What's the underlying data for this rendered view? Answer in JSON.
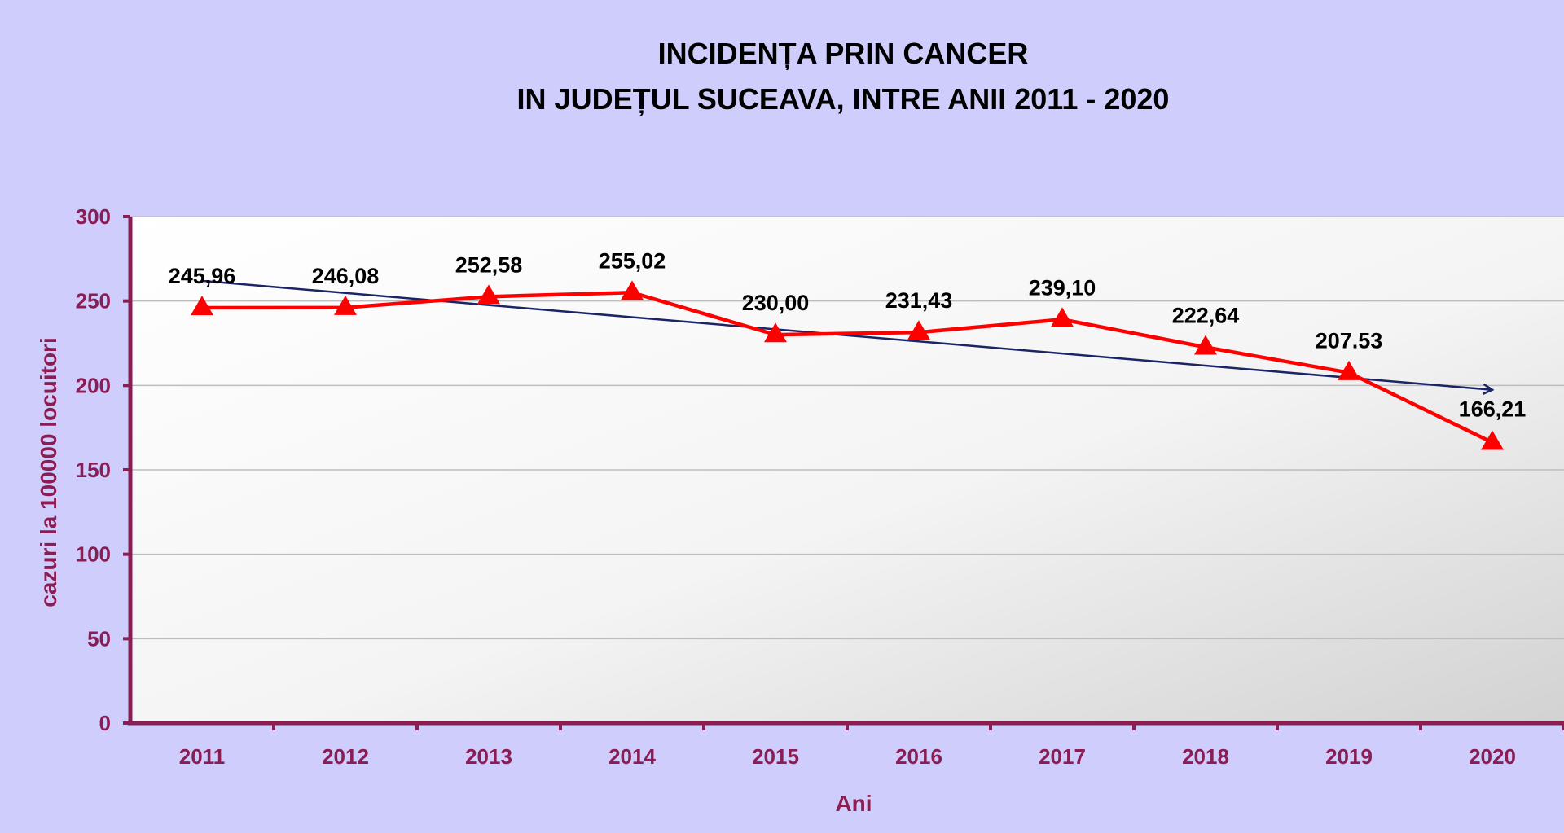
{
  "chart_data": {
    "type": "line",
    "title_lines": [
      "INCIDENȚA PRIN CANCER",
      "IN  JUDEȚUL  SUCEAVA,  INTRE ANII  2011 - 2020"
    ],
    "xlabel": "Ani",
    "ylabel": "cazuri la   100000  locuitori",
    "categories": [
      "2011",
      "2012",
      "2013",
      "2014",
      "2015",
      "2016",
      "2017",
      "2018",
      "2019",
      "2020"
    ],
    "series": [
      {
        "values": [
          245.96,
          246.08,
          252.58,
          255.02,
          230.0,
          231.43,
          239.1,
          222.64,
          207.53,
          166.21
        ],
        "labels": [
          "245,96",
          "246,08",
          "252,58",
          "255,02",
          "230,00",
          "231,43",
          "239,10",
          "222,64",
          "207.53",
          "166,21"
        ],
        "color": "#ff0000",
        "marker": "triangle"
      }
    ],
    "trendline": {
      "type": "linear",
      "color": "#1a2466",
      "arrow_end": true
    },
    "yticks": [
      "0",
      "50",
      "100",
      "150",
      "200",
      "250",
      "300"
    ],
    "ylim": [
      0,
      300
    ],
    "grid": true,
    "legend": "none",
    "colors": {
      "background": "#cfcdfb",
      "axis": "#8b1d55",
      "gridline": "#bdbdbd"
    }
  }
}
